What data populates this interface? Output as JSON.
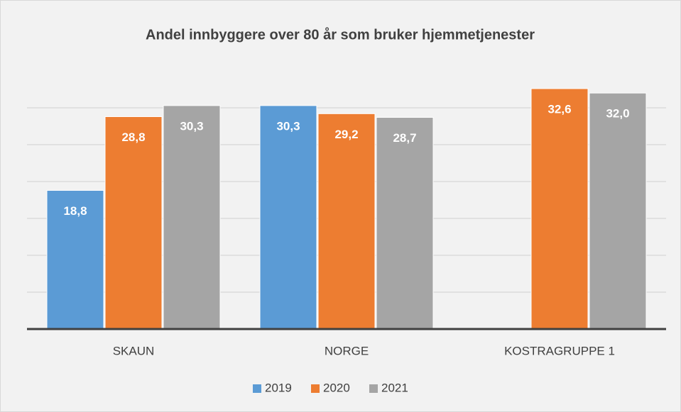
{
  "chart_data": {
    "type": "bar",
    "title": "Andel innbyggere over 80 år som bruker hjemmetjenester",
    "categories": [
      "SKAUN",
      "NORGE",
      "KOSTRAGRUPPE 1"
    ],
    "series": [
      {
        "name": "2019",
        "color": "#5b9bd5",
        "values": [
          18.8,
          30.3,
          null
        ],
        "value_labels": [
          "18,8",
          "30,3",
          null
        ]
      },
      {
        "name": "2020",
        "color": "#ed7d31",
        "values": [
          28.8,
          29.2,
          32.6
        ],
        "value_labels": [
          "28,8",
          "29,2",
          "32,6"
        ]
      },
      {
        "name": "2021",
        "color": "#a5a5a5",
        "values": [
          30.3,
          28.7,
          32.0
        ],
        "value_labels": [
          "30,3",
          "28,7",
          "32,0"
        ]
      }
    ],
    "ylim": [
      0,
      35
    ],
    "yticks": [
      0,
      5,
      10,
      15,
      20,
      25,
      30
    ],
    "grid": true,
    "legend": "bottom"
  }
}
